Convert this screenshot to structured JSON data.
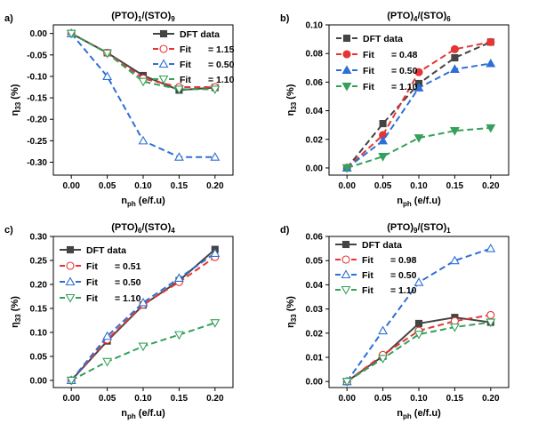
{
  "chart_data": [
    {
      "type": "line",
      "panel": "a)",
      "title_parts": [
        "(PTO)",
        "1",
        "/(STO)",
        "9"
      ],
      "xlabel_parts": [
        "n",
        "ph",
        " (e/f.u)"
      ],
      "ylabel_parts": [
        "η",
        "33",
        " (%)"
      ],
      "xlim": [
        -0.025,
        0.225
      ],
      "ylim": [
        -0.33,
        0.02
      ],
      "xticks": [
        "0.00",
        "0.05",
        "0.10",
        "0.15",
        "0.20"
      ],
      "yticks": [
        "0.00",
        "-0.05",
        "-0.10",
        "-0.15",
        "-0.20",
        "-0.25",
        "-0.30"
      ],
      "legend_position": "top-right",
      "series": [
        {
          "name": "DFT data",
          "color": "#444444",
          "marker": "square",
          "filled": true,
          "dash": false,
          "x": [
            0.0,
            0.05,
            0.1,
            0.15,
            0.2
          ],
          "y": [
            0.0,
            -0.045,
            -0.098,
            -0.132,
            -0.126
          ]
        },
        {
          "name": "Fit",
          "value": "= 1.15",
          "color": "#e53535",
          "marker": "circle",
          "filled": false,
          "dash": true,
          "x": [
            0.0,
            0.05,
            0.1,
            0.15,
            0.2
          ],
          "y": [
            0.0,
            -0.045,
            -0.105,
            -0.125,
            -0.125
          ]
        },
        {
          "name": "Fit",
          "value": "= 0.50",
          "color": "#2e6fd6",
          "marker": "triangle-up",
          "filled": false,
          "dash": true,
          "x": [
            0.0,
            0.05,
            0.1,
            0.15,
            0.2
          ],
          "y": [
            0.0,
            -0.1,
            -0.25,
            -0.288,
            -0.288
          ]
        },
        {
          "name": "Fit",
          "value": "= 1.10",
          "color": "#34a05a",
          "marker": "triangle-down",
          "filled": false,
          "dash": true,
          "x": [
            0.0,
            0.05,
            0.1,
            0.15,
            0.2
          ],
          "y": [
            0.0,
            -0.046,
            -0.112,
            -0.13,
            -0.13
          ]
        }
      ]
    },
    {
      "type": "line",
      "panel": "b)",
      "title_parts": [
        "(PTO)",
        "4",
        "/(STO)",
        "6"
      ],
      "xlabel_parts": [
        "n",
        "ph",
        " (e/f.u)"
      ],
      "ylabel_parts": [
        "η",
        "33",
        " (%)"
      ],
      "xlim": [
        -0.025,
        0.225
      ],
      "ylim": [
        -0.005,
        0.1
      ],
      "xticks": [
        "0.00",
        "0.05",
        "0.10",
        "0.15",
        "0.20"
      ],
      "yticks": [
        "0.00",
        "0.02",
        "0.04",
        "0.06",
        "0.08",
        "0.10"
      ],
      "legend_position": "top-left",
      "series": [
        {
          "name": "DFT data",
          "color": "#444444",
          "marker": "square",
          "filled": true,
          "dash": true,
          "x": [
            0.0,
            0.05,
            0.1,
            0.15,
            0.2
          ],
          "y": [
            0.0,
            0.031,
            0.059,
            0.077,
            0.088
          ]
        },
        {
          "name": "Fit",
          "value": "= 0.48",
          "color": "#e53535",
          "marker": "circle",
          "filled": true,
          "dash": true,
          "x": [
            0.0,
            0.05,
            0.1,
            0.15,
            0.2
          ],
          "y": [
            0.0,
            0.023,
            0.067,
            0.083,
            0.088
          ]
        },
        {
          "name": "Fit",
          "value": "= 0.50",
          "color": "#2e6fd6",
          "marker": "triangle-up",
          "filled": true,
          "dash": true,
          "x": [
            0.0,
            0.05,
            0.1,
            0.15,
            0.2
          ],
          "y": [
            0.0,
            0.019,
            0.056,
            0.069,
            0.073
          ]
        },
        {
          "name": "Fit",
          "value": "= 1.10",
          "color": "#34a05a",
          "marker": "triangle-down",
          "filled": true,
          "dash": true,
          "x": [
            0.0,
            0.05,
            0.1,
            0.15,
            0.2
          ],
          "y": [
            0.0,
            0.008,
            0.021,
            0.026,
            0.028
          ]
        }
      ]
    },
    {
      "type": "line",
      "panel": "c)",
      "title_parts": [
        "(PTO)",
        "6",
        "/(STO)",
        "4"
      ],
      "xlabel_parts": [
        "n",
        "ph",
        " (e/f.u)"
      ],
      "ylabel_parts": [
        "η",
        "33",
        " (%)"
      ],
      "xlim": [
        -0.025,
        0.225
      ],
      "ylim": [
        -0.015,
        0.3
      ],
      "xticks": [
        "0.00",
        "0.05",
        "0.10",
        "0.15",
        "0.20"
      ],
      "yticks": [
        "0.00",
        "0.05",
        "0.10",
        "0.15",
        "0.20",
        "0.25",
        "0.30"
      ],
      "legend_position": "top-left",
      "series": [
        {
          "name": "DFT data",
          "color": "#444444",
          "marker": "square",
          "filled": true,
          "dash": false,
          "x": [
            0.0,
            0.05,
            0.1,
            0.15,
            0.2
          ],
          "y": [
            0.0,
            0.082,
            0.157,
            0.208,
            0.273
          ]
        },
        {
          "name": "Fit",
          "value": "= 0.51",
          "color": "#e53535",
          "marker": "circle",
          "filled": false,
          "dash": true,
          "x": [
            0.0,
            0.05,
            0.1,
            0.15,
            0.2
          ],
          "y": [
            0.0,
            0.085,
            0.158,
            0.205,
            0.257
          ]
        },
        {
          "name": "Fit",
          "value": "= 0.50",
          "color": "#2e6fd6",
          "marker": "triangle-up",
          "filled": false,
          "dash": true,
          "x": [
            0.0,
            0.05,
            0.1,
            0.15,
            0.2
          ],
          "y": [
            0.0,
            0.092,
            0.162,
            0.213,
            0.265
          ]
        },
        {
          "name": "Fit",
          "value": "= 1.10",
          "color": "#34a05a",
          "marker": "triangle-down",
          "filled": false,
          "dash": true,
          "x": [
            0.0,
            0.05,
            0.1,
            0.15,
            0.2
          ],
          "y": [
            0.0,
            0.039,
            0.071,
            0.095,
            0.12
          ]
        }
      ]
    },
    {
      "type": "line",
      "panel": "d)",
      "title_parts": [
        "(PTO)",
        "9",
        "/(STO)",
        "1"
      ],
      "xlabel_parts": [
        "n",
        "ph",
        " (e/f.u)"
      ],
      "ylabel_parts": [
        "η",
        "33",
        " (%)"
      ],
      "xlim": [
        -0.025,
        0.225
      ],
      "ylim": [
        -0.0025,
        0.06
      ],
      "xticks": [
        "0.00",
        "0.05",
        "0.10",
        "0.15",
        "0.20"
      ],
      "yticks": [
        "0.00",
        "0.01",
        "0.02",
        "0.03",
        "0.04",
        "0.05",
        "0.06"
      ],
      "legend_position": "top-left",
      "series": [
        {
          "name": "DFT data",
          "color": "#444444",
          "marker": "square",
          "filled": true,
          "dash": false,
          "x": [
            0.0,
            0.05,
            0.1,
            0.15,
            0.2
          ],
          "y": [
            0.0,
            0.0105,
            0.024,
            0.0265,
            0.0245
          ]
        },
        {
          "name": "Fit",
          "value": "= 0.98",
          "color": "#e53535",
          "marker": "circle",
          "filled": false,
          "dash": true,
          "x": [
            0.0,
            0.05,
            0.1,
            0.15,
            0.2
          ],
          "y": [
            0.0,
            0.011,
            0.021,
            0.025,
            0.0275
          ]
        },
        {
          "name": "Fit",
          "value": "= 0.50",
          "color": "#2e6fd6",
          "marker": "triangle-up",
          "filled": false,
          "dash": true,
          "x": [
            0.0,
            0.05,
            0.1,
            0.15,
            0.2
          ],
          "y": [
            0.0,
            0.021,
            0.041,
            0.05,
            0.055
          ]
        },
        {
          "name": "Fit",
          "value": "= 1.10",
          "color": "#34a05a",
          "marker": "triangle-down",
          "filled": false,
          "dash": true,
          "x": [
            0.0,
            0.05,
            0.1,
            0.15,
            0.2
          ],
          "y": [
            0.0,
            0.0095,
            0.0195,
            0.0225,
            0.0245
          ]
        }
      ]
    }
  ]
}
